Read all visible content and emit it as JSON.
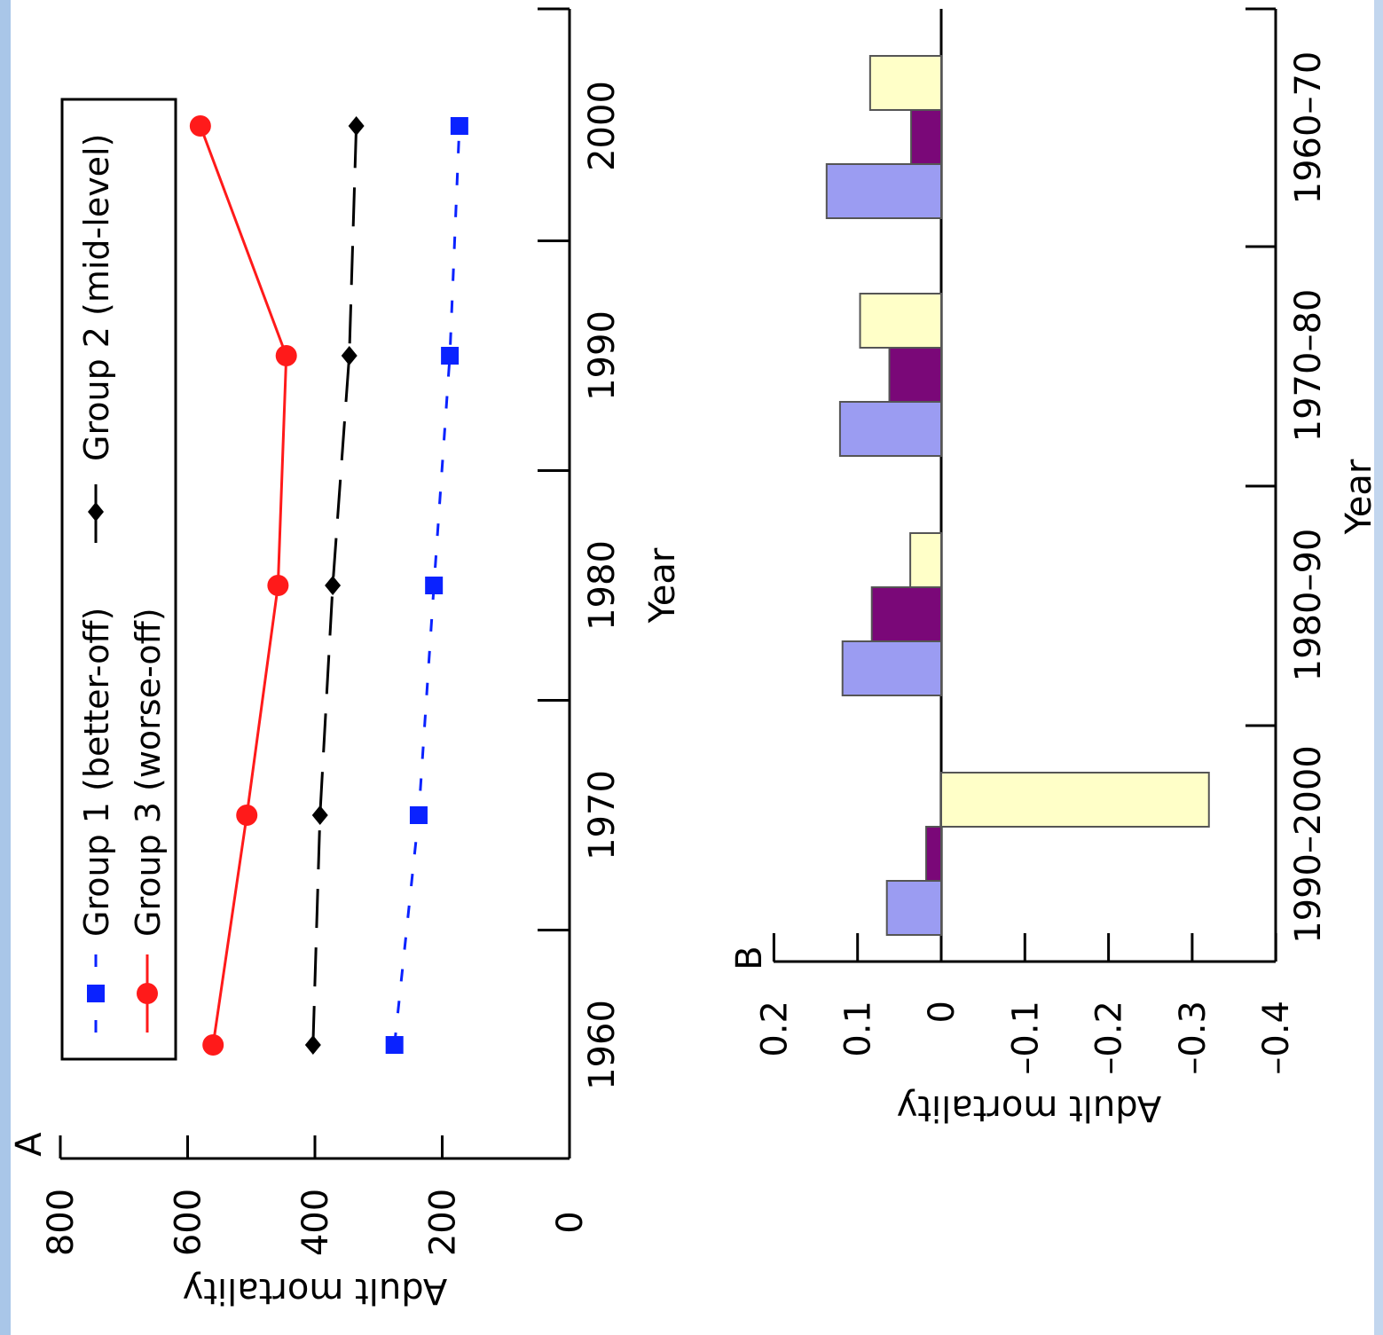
{
  "colors": {
    "group1": "#0a22ff",
    "group2": "#000000",
    "group3": "#ff1a1a",
    "bar1": "#9b9cf2",
    "bar2": "#7a0878",
    "bar3": "#ffffc8"
  },
  "chart_data": [
    {
      "type": "line",
      "panel_label": "A",
      "xlabel": "Year",
      "ylabel": "Adult mortality",
      "xlim": [
        1952,
        2007
      ],
      "ylim": [
        0,
        800
      ],
      "xticks": [
        "1960",
        "1970",
        "1980",
        "1990",
        "2000"
      ],
      "yticks": [
        "0",
        "200",
        "400",
        "600",
        "800"
      ],
      "x": [
        1960,
        1970,
        1980,
        1990,
        2000
      ],
      "series": [
        {
          "name": "Group 1 (better-off)",
          "values": [
            275,
            237,
            213,
            188,
            173
          ]
        },
        {
          "name": "Group 2 (mid-level)",
          "values": [
            403,
            392,
            372,
            346,
            335
          ]
        },
        {
          "name": "Group 3 (worse-off)",
          "values": [
            560,
            507,
            458,
            445,
            580
          ]
        }
      ],
      "legend": "top-left",
      "grid": false
    },
    {
      "type": "bar",
      "panel_label": "B",
      "xlabel": "Year",
      "ylabel": "Adult mortality",
      "categories": [
        "1960–70",
        "1970–80",
        "1980–90",
        "1990–2000"
      ],
      "yticks": [
        "0.2",
        "0.1",
        "0",
        "–0.1",
        "–0.2",
        "–0.3",
        "–0.4"
      ],
      "ylim": [
        -0.4,
        0.2
      ],
      "series": [
        {
          "values": [
            0.137,
            0.121,
            0.118,
            0.065
          ]
        },
        {
          "values": [
            0.036,
            0.062,
            0.083,
            0.018
          ]
        },
        {
          "values": [
            0.085,
            0.097,
            0.037,
            -0.32
          ]
        }
      ],
      "grid": false
    }
  ]
}
